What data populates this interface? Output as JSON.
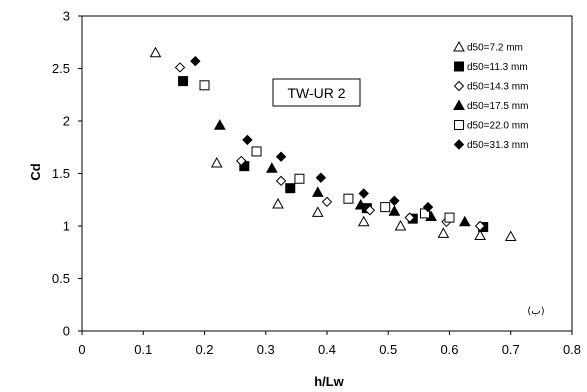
{
  "chart_data": {
    "type": "scatter",
    "xlabel": "h/Lw",
    "ylabel": "Cd",
    "xlim": [
      0,
      0.8
    ],
    "ylim": [
      0,
      3
    ],
    "x_ticks": [
      "0",
      "0.1",
      "0.2",
      "0.3",
      "0.4",
      "0.5",
      "0.6",
      "0.7",
      "0.8"
    ],
    "y_ticks": [
      "0",
      "0.5",
      "1",
      "1.5",
      "2",
      "2.5",
      "3"
    ],
    "grid": false,
    "legend_position": "top-right",
    "annotation": "TW-UR 2",
    "corner_label": "(ب)",
    "series": [
      {
        "name": "d50=7.2 mm",
        "marker": "triangle-open",
        "x": [
          0.12,
          0.22,
          0.32,
          0.385,
          0.46,
          0.52,
          0.59,
          0.65,
          0.7
        ],
        "y": [
          2.65,
          1.6,
          1.21,
          1.13,
          1.04,
          1.0,
          0.93,
          0.91,
          0.9
        ]
      },
      {
        "name": "d50=11.3 mm",
        "marker": "square-filled",
        "x": [
          0.165,
          0.265,
          0.34,
          0.465,
          0.54,
          0.655
        ],
        "y": [
          2.38,
          1.57,
          1.36,
          1.17,
          1.07,
          0.99
        ]
      },
      {
        "name": "d50=14.3 mm",
        "marker": "diamond-open",
        "x": [
          0.16,
          0.26,
          0.325,
          0.4,
          0.47,
          0.535,
          0.595,
          0.65
        ],
        "y": [
          2.51,
          1.62,
          1.43,
          1.23,
          1.15,
          1.08,
          1.04,
          1.0
        ]
      },
      {
        "name": "d50=17.5 mm",
        "marker": "triangle-filled",
        "x": [
          0.225,
          0.31,
          0.385,
          0.455,
          0.51,
          0.57,
          0.625
        ],
        "y": [
          1.96,
          1.55,
          1.32,
          1.2,
          1.14,
          1.09,
          1.04
        ]
      },
      {
        "name": "d50=22.0 mm",
        "marker": "square-open",
        "x": [
          0.2,
          0.285,
          0.355,
          0.435,
          0.495,
          0.56,
          0.6
        ],
        "y": [
          2.34,
          1.71,
          1.45,
          1.26,
          1.18,
          1.12,
          1.08
        ]
      },
      {
        "name": "d50=31.3 mm",
        "marker": "diamond-filled",
        "x": [
          0.185,
          0.27,
          0.325,
          0.39,
          0.46,
          0.51,
          0.565
        ],
        "y": [
          2.57,
          1.82,
          1.66,
          1.46,
          1.31,
          1.24,
          1.18
        ]
      }
    ]
  }
}
